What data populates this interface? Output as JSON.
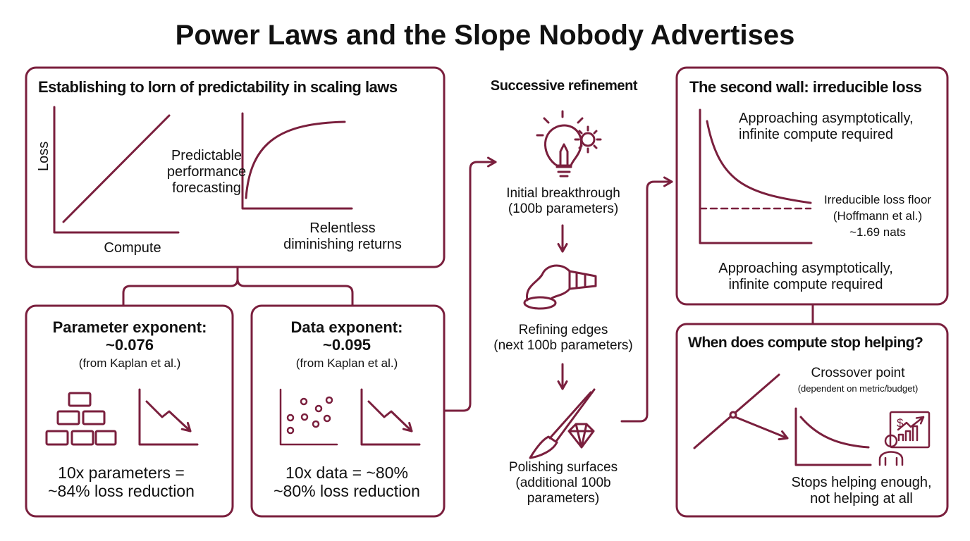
{
  "title": "Power Laws and the Slope Nobody Advertises",
  "colors": {
    "accent": "#7a1f3d",
    "text": "#111111",
    "background": "#ffffff"
  },
  "panel_predictability": {
    "title": "Establishing to lorn of predictability in scaling laws",
    "y_label": "Loss",
    "x_label": "Compute",
    "left_caption": [
      "Predictable",
      "performance",
      "forecasting"
    ],
    "right_caption": [
      "Relentless",
      "diminishing returns"
    ]
  },
  "panel_parameter": {
    "title": "Parameter exponent:",
    "value": "~0.076",
    "source": "(from Kaplan et al.)",
    "icons": [
      "bricks-icon",
      "downtrend-chart-icon"
    ],
    "result": [
      "10x parameters =",
      "~84% loss reduction"
    ]
  },
  "panel_data": {
    "title": "Data exponent:",
    "value": "~0.095",
    "source": "(from Kaplan et al.)",
    "icons": [
      "scatter-dots-icon",
      "downtrend-chart-icon"
    ],
    "result": [
      "10x data = ~80%",
      "~80% loss reduction"
    ]
  },
  "refinement": {
    "title": "Successive refinement",
    "steps": [
      {
        "icon": "lightbulb-gear-icon",
        "lines": [
          "Initial breakthrough",
          "(100b parameters)"
        ]
      },
      {
        "icon": "polisher-icon",
        "lines": [
          "Refining edges",
          "(next 100b parameters)"
        ]
      },
      {
        "icon": "brush-diamond-icon",
        "lines": [
          "Polishing surfaces",
          "(additional 100b",
          "parameters)"
        ]
      }
    ]
  },
  "panel_wall": {
    "title": "The second wall: irreducible loss",
    "top_note": [
      "Approaching asymptotically,",
      "infinite compute required"
    ],
    "floor_label": [
      "Irreducible loss floor",
      "(Hoffmann et al.)",
      "~1.69 nats"
    ],
    "bottom_note": [
      "Approaching asymptotically,",
      "infinite compute required"
    ]
  },
  "panel_stop": {
    "title": "When does compute stop helping?",
    "crossover": "Crossover point",
    "crossover_note": "(dependent on metric/budget)",
    "icon": "person-presenting-chart-icon",
    "bottom": [
      "Stops helping enough,",
      "not helping at all"
    ]
  }
}
